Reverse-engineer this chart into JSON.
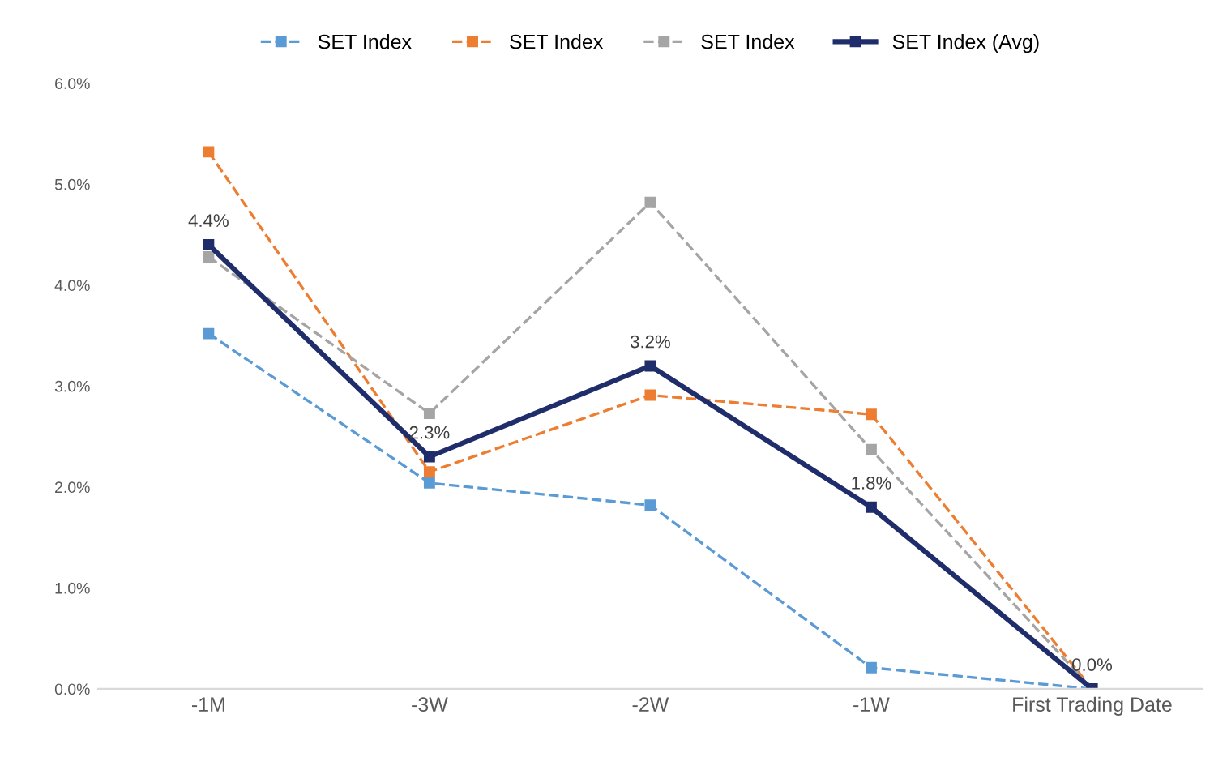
{
  "chart_data": {
    "type": "line",
    "categories": [
      "-1M",
      "-3W",
      "-2W",
      "-1W",
      "First Trading Date"
    ],
    "series": [
      {
        "name": "SET Index",
        "color": "#5b9bd5",
        "line_style": "dashed",
        "values": [
          3.52,
          2.04,
          1.82,
          0.21,
          0
        ]
      },
      {
        "name": "SET Index",
        "color": "#ed7d31",
        "line_style": "dashed",
        "values": [
          5.32,
          2.15,
          2.91,
          2.72,
          0
        ]
      },
      {
        "name": "SET Index",
        "color": "#a5a5a5",
        "line_style": "dashed",
        "values": [
          4.28,
          2.73,
          4.82,
          2.37,
          0
        ]
      },
      {
        "name": "SET Index (Avg)",
        "color": "#1f2d6b",
        "line_style": "solid",
        "values": [
          4.4,
          2.3,
          3.2,
          1.8,
          0
        ],
        "value_labels": [
          "4.4%",
          "2.3%",
          "3.2%",
          "1.8%",
          "0.0%"
        ]
      }
    ],
    "ylim": [
      0,
      6
    ],
    "yticks": [
      {
        "value": 0,
        "label": "0.0%"
      },
      {
        "value": 1,
        "label": "1.0%"
      },
      {
        "value": 2,
        "label": "2.0%"
      },
      {
        "value": 3,
        "label": "3.0%"
      },
      {
        "value": 4,
        "label": "4.0%"
      },
      {
        "value": 5,
        "label": "5.0%"
      },
      {
        "value": 6,
        "label": "6.0%"
      }
    ],
    "marker": "square",
    "legend": "top",
    "grid": false
  }
}
